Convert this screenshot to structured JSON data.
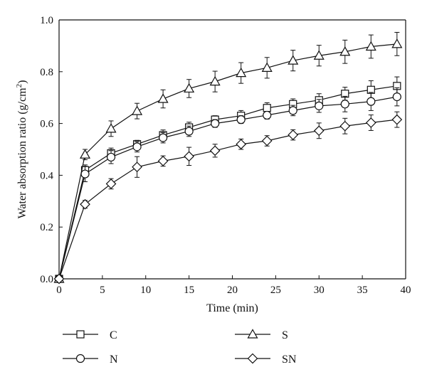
{
  "chart_data": {
    "type": "line",
    "xlabel": "Time (min)",
    "ylabel_main": "Water absorption ratio (g/cm",
    "ylabel_sup": "2",
    "ylabel_close": ")",
    "xlim": [
      0,
      40
    ],
    "ylim": [
      0.0,
      1.0
    ],
    "xticks": [
      "0",
      "5",
      "10",
      "15",
      "20",
      "25",
      "30",
      "35",
      "40"
    ],
    "yticks": [
      "0.0",
      "0.2",
      "0.4",
      "0.6",
      "0.8",
      "1.0"
    ],
    "grid": false,
    "legend_placement": "bottom",
    "x": [
      0,
      3,
      6,
      9,
      12,
      15,
      18,
      21,
      24,
      27,
      30,
      33,
      36,
      39
    ],
    "series": [
      {
        "name": "C",
        "marker": "square",
        "values": [
          0.0,
          0.42,
          0.485,
          0.52,
          0.555,
          0.585,
          0.615,
          0.63,
          0.66,
          0.675,
          0.69,
          0.715,
          0.73,
          0.745
        ],
        "errors": [
          0.0,
          0.02,
          0.02,
          0.015,
          0.02,
          0.02,
          0.015,
          0.02,
          0.02,
          0.02,
          0.025,
          0.025,
          0.035,
          0.035
        ]
      },
      {
        "name": "N",
        "marker": "circle",
        "values": [
          0.0,
          0.405,
          0.47,
          0.51,
          0.545,
          0.57,
          0.6,
          0.615,
          0.632,
          0.65,
          0.668,
          0.675,
          0.685,
          0.703
        ],
        "errors": [
          0.0,
          0.03,
          0.025,
          0.02,
          0.02,
          0.02,
          0.015,
          0.015,
          0.015,
          0.02,
          0.025,
          0.03,
          0.035,
          0.035
        ]
      },
      {
        "name": "S",
        "marker": "triangle",
        "values": [
          0.0,
          0.48,
          0.58,
          0.648,
          0.695,
          0.735,
          0.762,
          0.795,
          0.815,
          0.843,
          0.862,
          0.877,
          0.897,
          0.907
        ],
        "errors": [
          0.0,
          0.02,
          0.03,
          0.03,
          0.035,
          0.035,
          0.04,
          0.04,
          0.04,
          0.04,
          0.04,
          0.045,
          0.045,
          0.045
        ]
      },
      {
        "name": "SN",
        "marker": "diamond",
        "values": [
          0.0,
          0.288,
          0.367,
          0.432,
          0.455,
          0.473,
          0.495,
          0.52,
          0.533,
          0.556,
          0.572,
          0.59,
          0.603,
          0.615
        ],
        "errors": [
          0.0,
          0.015,
          0.02,
          0.04,
          0.02,
          0.035,
          0.025,
          0.02,
          0.02,
          0.02,
          0.03,
          0.03,
          0.03,
          0.03
        ]
      }
    ]
  },
  "colors": {
    "ink": "#111111",
    "marker_fill": "#ffffff"
  }
}
